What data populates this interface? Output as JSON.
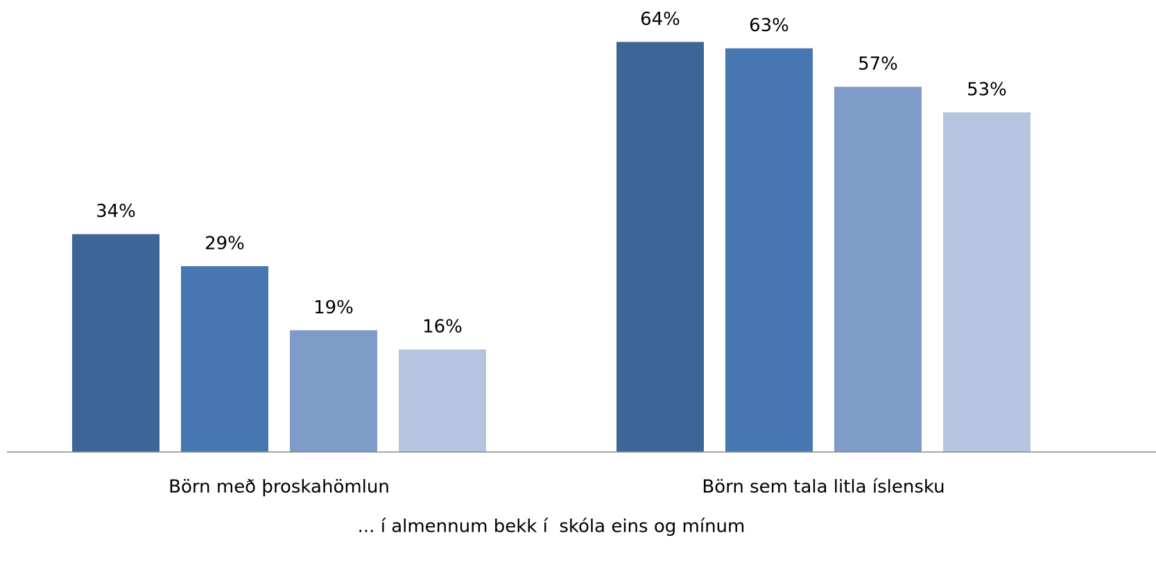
{
  "chart_data": {
    "type": "bar",
    "categories": [
      "Börn með þroskahömlun",
      "Börn sem tala litla íslensku"
    ],
    "series": [
      {
        "color": "#3d6596",
        "values": [
          34,
          64
        ],
        "value_labels": [
          "34%",
          "64%"
        ]
      },
      {
        "color": "#4677b0",
        "values": [
          29,
          63
        ],
        "value_labels": [
          "29%",
          "63%"
        ]
      },
      {
        "color": "#7f9cc8",
        "values": [
          19,
          57
        ],
        "value_labels": [
          "19%",
          "57%"
        ]
      },
      {
        "color": "#b5c4df",
        "values": [
          16,
          53
        ],
        "value_labels": [
          "16%",
          "53%"
        ]
      }
    ],
    "x_label": "... í almennum bekk í  skóla eins og mínum",
    "ylim": [
      0,
      70
    ]
  }
}
